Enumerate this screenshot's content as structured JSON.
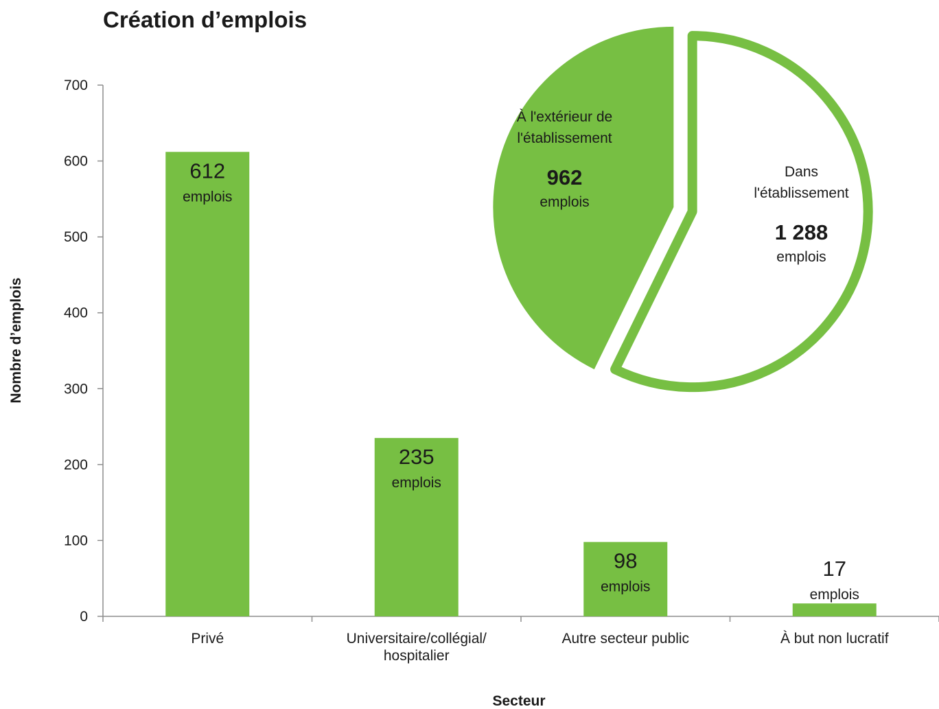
{
  "chart_data": [
    {
      "type": "bar",
      "title": "Création d’emplois",
      "xlabel": "Secteur",
      "ylabel": "Nombre d’emplois",
      "ylim": [
        0,
        700
      ],
      "yticks": [
        0,
        100,
        200,
        300,
        400,
        500,
        600,
        700
      ],
      "categories": [
        "Privé",
        "Universitaire/collégial/\nhospitalier",
        "Autre secteur public",
        "À but non lucratif"
      ],
      "values": [
        612,
        235,
        98,
        17
      ],
      "data_labels": [
        "612",
        "235",
        "98",
        "17"
      ],
      "data_label_unit": "emplois",
      "grid": false,
      "color": "#77bf43"
    },
    {
      "type": "pie",
      "slices": [
        {
          "label": "À l'extérieur de\nl'établissement",
          "value": 962,
          "value_label": "962",
          "unit": "emplois",
          "style": "filled"
        },
        {
          "label": "Dans\nl'établissement",
          "value": 1288,
          "value_label": "1 288",
          "unit": "emplois",
          "style": "outline"
        }
      ],
      "color": "#77bf43"
    }
  ]
}
